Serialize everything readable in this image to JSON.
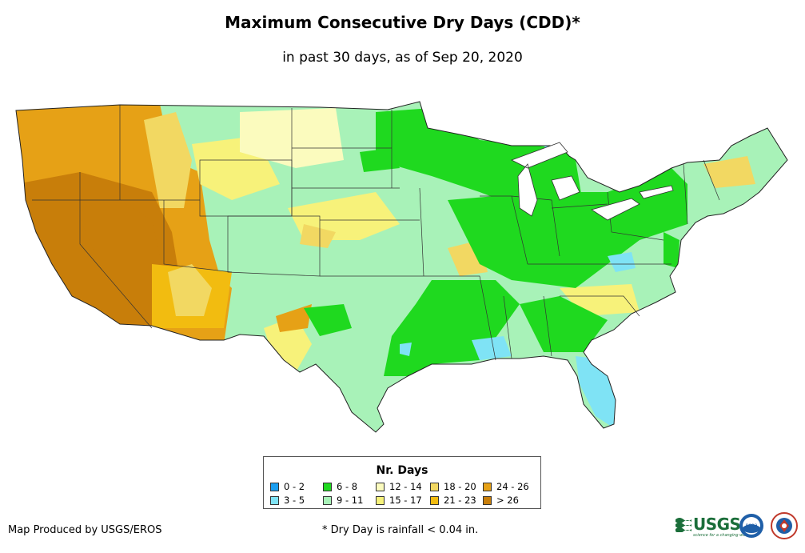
{
  "title": "Maximum Consecutive Dry Days (CDD)*",
  "subtitle": "in past 30 days, as of Sep 20, 2020",
  "legend": {
    "title": "Nr. Days",
    "items": [
      {
        "label": "0 - 2",
        "color": "#1a9ef0"
      },
      {
        "label": "3 - 5",
        "color": "#7fe3f5"
      },
      {
        "label": "6 - 8",
        "color": "#1fd91f"
      },
      {
        "label": "9 - 11",
        "color": "#a8f2b8"
      },
      {
        "label": "12 - 14",
        "color": "#fbfbbe"
      },
      {
        "label": "15 - 17",
        "color": "#f7f27a"
      },
      {
        "label": "18 - 20",
        "color": "#f2d862"
      },
      {
        "label": "21 - 23",
        "color": "#f2bc10"
      },
      {
        "label": "24 - 26",
        "color": "#e6a116"
      },
      {
        "label": "> 26",
        "color": "#c87e0a"
      }
    ]
  },
  "footer": {
    "producer": "Map Produced by USGS/EROS",
    "note": "* Dry Day is rainfall < 0.04 in."
  },
  "logos": {
    "usgs_text": "USGS",
    "usgs_tagline": "science for a changing world",
    "noaa_text": "noaa"
  }
}
